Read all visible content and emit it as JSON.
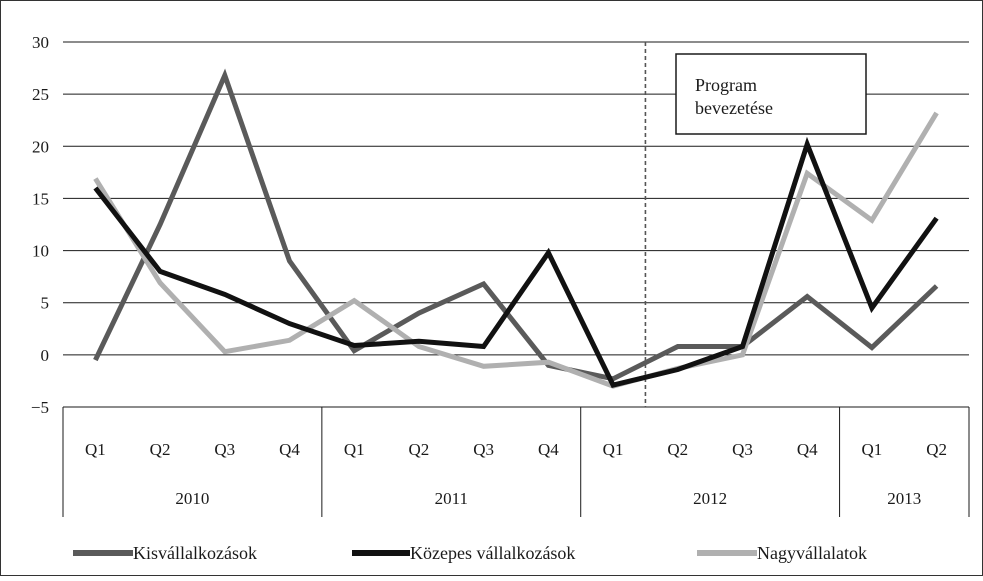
{
  "chart_data": {
    "type": "line",
    "title": "",
    "xlabel": "",
    "ylabel": "",
    "ylim": [
      -5,
      30
    ],
    "yticks": [
      "30",
      "25",
      "20",
      "15",
      "10",
      "5",
      "0",
      "−5"
    ],
    "yticks_values": [
      30,
      25,
      20,
      15,
      10,
      5,
      0,
      -5
    ],
    "grid": "horizontal",
    "categories": [
      "Q1",
      "Q2",
      "Q3",
      "Q4",
      "Q1",
      "Q2",
      "Q3",
      "Q4",
      "Q1",
      "Q2",
      "Q3",
      "Q4",
      "Q1",
      "Q2"
    ],
    "groups": [
      {
        "label": "2010",
        "count": 4
      },
      {
        "label": "2011",
        "count": 4
      },
      {
        "label": "2012",
        "count": 4
      },
      {
        "label": "2013",
        "count": 2
      }
    ],
    "series": [
      {
        "name": "Kisvállalkozások",
        "color": "#5a5a5a",
        "values": [
          -0.5,
          12.5,
          26.8,
          9.0,
          0.4,
          4.0,
          6.8,
          -1.0,
          -2.3,
          0.8,
          0.8,
          5.6,
          0.7,
          6.6
        ]
      },
      {
        "name": "Közepes vállalkozások",
        "color": "#111111",
        "values": [
          16.0,
          8.0,
          5.8,
          3.0,
          0.9,
          1.3,
          0.8,
          9.8,
          -2.9,
          -1.4,
          0.8,
          20.2,
          4.5,
          13.1
        ]
      },
      {
        "name": "Nagyvállalatok",
        "color": "#b0b0b0",
        "values": [
          16.9,
          6.9,
          0.3,
          1.4,
          5.2,
          0.8,
          -1.1,
          -0.7,
          -3.0,
          -1.3,
          0.0,
          17.4,
          12.9,
          23.2
        ]
      }
    ],
    "annotation": {
      "lines": [
        "Program",
        "bevezetése"
      ],
      "x_category_index": 9,
      "line_style": "dashed"
    },
    "legend_position": "bottom"
  }
}
